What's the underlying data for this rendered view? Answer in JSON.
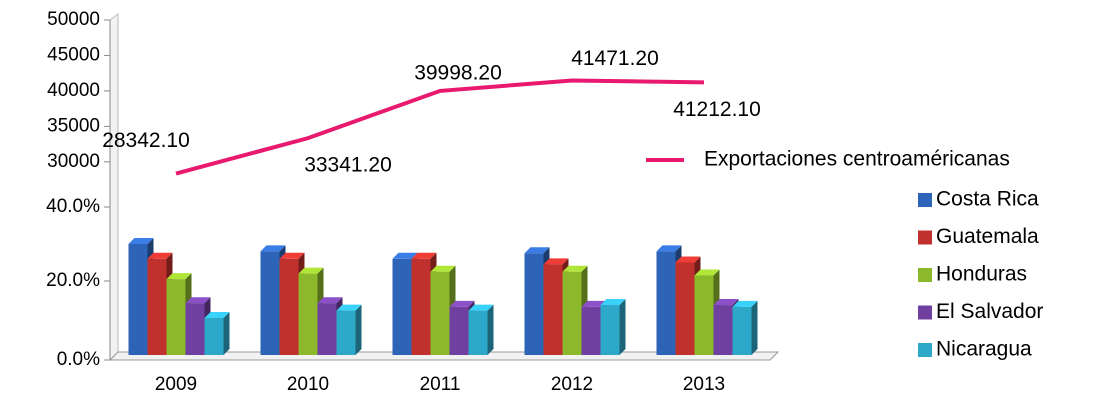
{
  "chart_data": [
    {
      "type": "line",
      "categories": [
        "2009",
        "2010",
        "2011",
        "2012",
        "2013"
      ],
      "series": [
        {
          "name": "Exportaciones centroaméricanas",
          "color": "#e8196e",
          "values": [
            28342.1,
            33341.2,
            39998.2,
            41471.2,
            41212.1
          ],
          "value_labels": [
            "28342.10",
            "33341.20",
            "39998.20",
            "41471.20",
            "41212.10"
          ]
        }
      ],
      "ylim": [
        28000,
        50000
      ],
      "yticks": [
        30000,
        35000,
        40000,
        45000,
        50000
      ]
    },
    {
      "type": "bar",
      "categories": [
        "2009",
        "2010",
        "2011",
        "2012",
        "2013"
      ],
      "series": [
        {
          "name": "Costa Rica",
          "color": "#2e64b8",
          "values": [
            30,
            28,
            26,
            27.5,
            28
          ]
        },
        {
          "name": "Guatemala",
          "color": "#c0302c",
          "values": [
            26,
            26,
            26,
            24.5,
            25
          ]
        },
        {
          "name": "Honduras",
          "color": "#8cb82c",
          "values": [
            20.5,
            22,
            22.5,
            22.5,
            21.5
          ]
        },
        {
          "name": "El Salvador",
          "color": "#7040a0",
          "values": [
            14,
            14,
            13,
            13,
            13.5
          ]
        },
        {
          "name": "Nicaragua",
          "color": "#2ea8c8",
          "values": [
            10,
            12,
            12,
            13.5,
            13
          ]
        }
      ],
      "ylim": [
        0,
        40
      ],
      "yticks": [
        {
          "value": 0,
          "label": "0.0%"
        },
        {
          "value": 20,
          "label": "20.0%"
        },
        {
          "value": 40,
          "label": "40.0%"
        }
      ]
    }
  ]
}
